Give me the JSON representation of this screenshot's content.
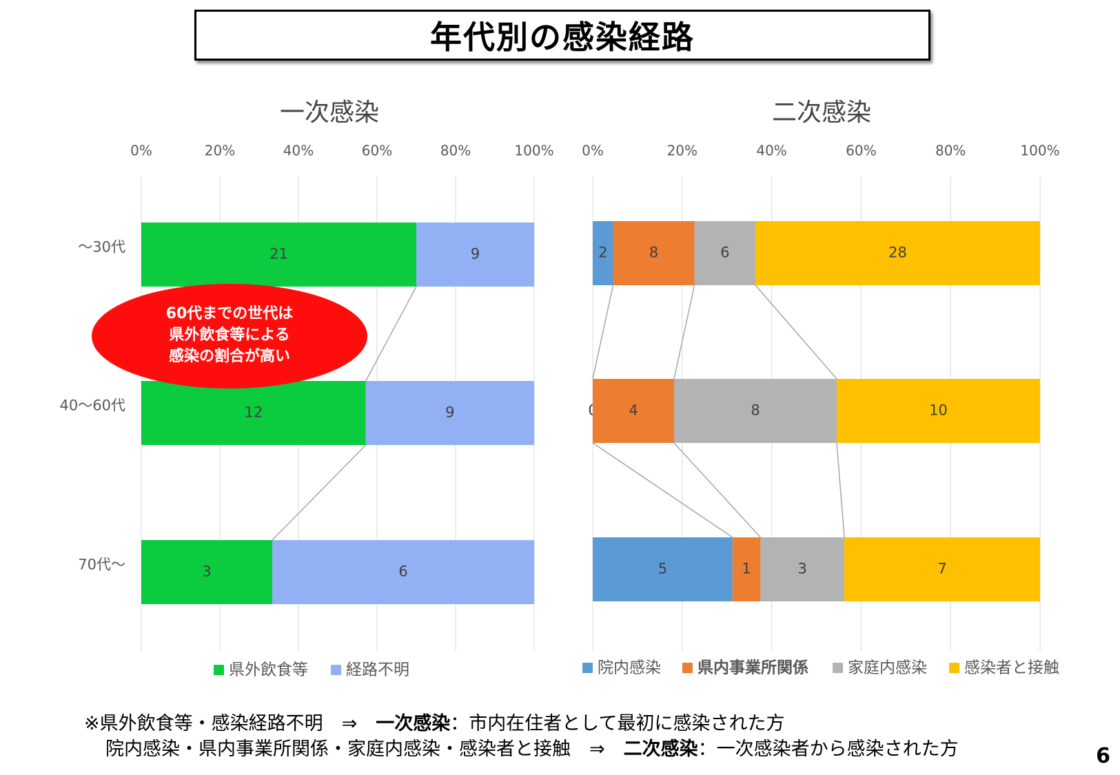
{
  "page_title": "年代別の感染経路",
  "chart_data": [
    {
      "type": "bar",
      "orientation": "horizontal-stacked-100",
      "title": "一次感染",
      "categories": [
        "～30代",
        "40～60代",
        "70代～"
      ],
      "x_ticks": [
        "0%",
        "20%",
        "40%",
        "60%",
        "80%",
        "100%"
      ],
      "series": [
        {
          "name": "県外飲食等",
          "color": "#0bcb3f",
          "values": [
            21,
            12,
            3
          ]
        },
        {
          "name": "経路不明",
          "color": "#92b0f4",
          "values": [
            9,
            9,
            6
          ]
        }
      ],
      "legend_position": "bottom",
      "grid": true
    },
    {
      "type": "bar",
      "orientation": "horizontal-stacked-100",
      "title": "二次感染",
      "categories": [
        "～30代",
        "40～60代",
        "70代～"
      ],
      "x_ticks": [
        "0%",
        "20%",
        "40%",
        "60%",
        "80%",
        "100%"
      ],
      "series": [
        {
          "name": "院内感染",
          "color": "#5b9bd5",
          "values": [
            2,
            0,
            5
          ]
        },
        {
          "name": "県内事業所関係",
          "color": "#ed7d31",
          "values": [
            8,
            4,
            1
          ]
        },
        {
          "name": "家庭内感染",
          "color": "#b3b3b3",
          "values": [
            6,
            8,
            3
          ]
        },
        {
          "name": "感染者と接触",
          "color": "#ffc000",
          "values": [
            28,
            10,
            7
          ]
        }
      ],
      "legend_position": "bottom",
      "grid": true
    }
  ],
  "callout": {
    "lines": [
      "60代までの世代は",
      "県外飲食等による",
      "感染の割合が高い"
    ],
    "color": "#ff0d0d"
  },
  "notes": {
    "line1_prefix": "※県外飲食等・感染経路不明　⇒　",
    "line1_bold": "一次感染",
    "line1_suffix": "：市内在住者として最初に感染された方",
    "line2_prefix": "院内感染・県内事業所関係・家庭内感染・感染者と接触　⇒　",
    "line2_bold": "二次感染",
    "line2_suffix": "：一次感染者から感染された方"
  },
  "page_number": "6"
}
